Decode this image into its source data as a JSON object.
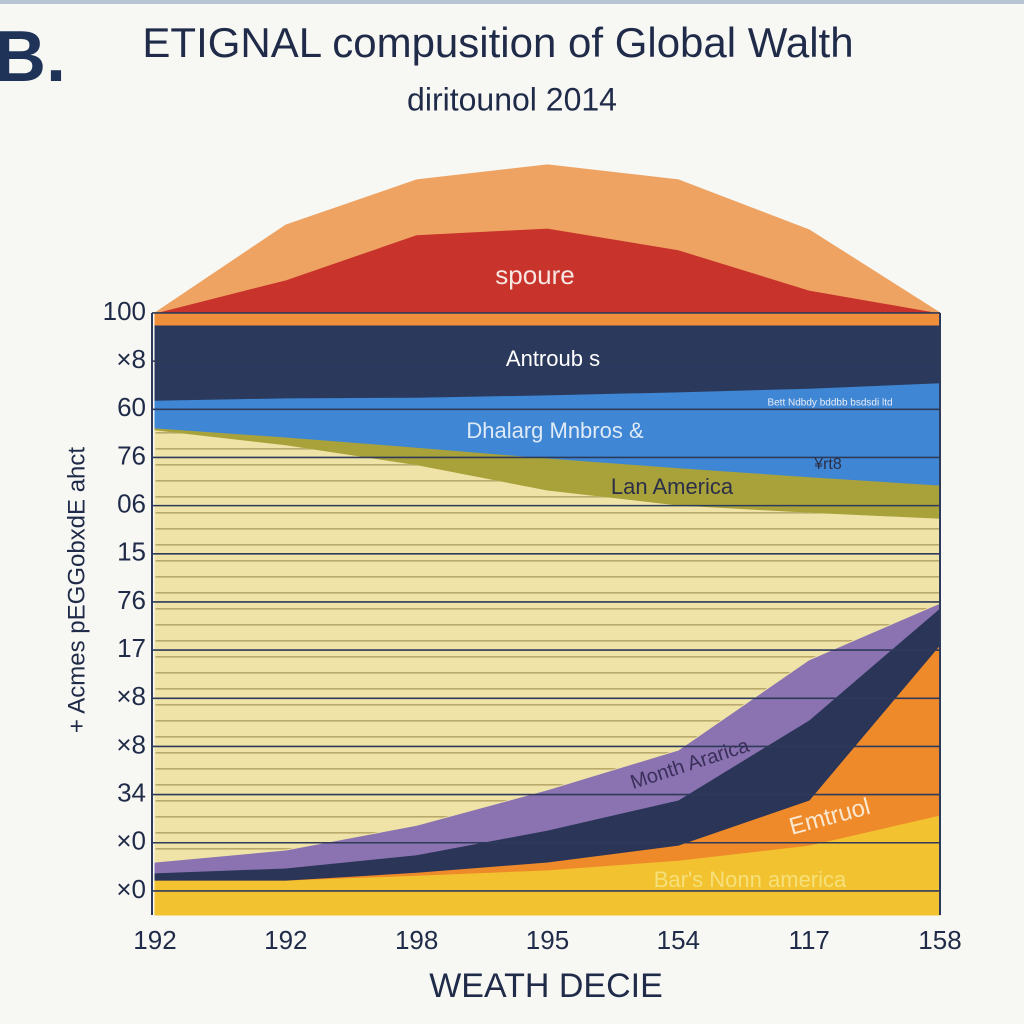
{
  "chart_data": {
    "type": "stacked_area",
    "corner_mark": "B.",
    "title": "ETIGNAL compusition of Global Walth",
    "subtitle": "diritounol 2014",
    "ylabel": "+ Acmes pEGGobxdE ahct",
    "xlabel": "WEATH DECIE",
    "categories": [
      "192",
      "192",
      "198",
      "195",
      "154",
      "117",
      "158"
    ],
    "ylim": [
      0,
      128
    ],
    "yticks": [
      100,
      {
        "value": 92,
        "label": "×8"
      },
      {
        "value": 84,
        "label": "60"
      },
      76,
      {
        "value": 68,
        "label": "06"
      },
      {
        "value": 60,
        "label": "15"
      },
      {
        "value": 52,
        "label": "76"
      },
      {
        "value": 44,
        "label": "17"
      },
      {
        "value": 36,
        "label": "×8"
      },
      {
        "value": 28,
        "label": "×8"
      },
      {
        "value": 20,
        "label": "34"
      },
      {
        "value": 12,
        "label": "×0"
      },
      {
        "value": 4,
        "label": "×0"
      }
    ],
    "grid": true,
    "series": [
      {
        "name": "Bar's Nonn america",
        "color": "#f2c230",
        "values": [
          5.8,
          5.8,
          6.6,
          7.5,
          9.1,
          11.6,
          16.6
        ]
      },
      {
        "name": "Emtruol",
        "color": "#ef8a2a",
        "values": [
          0,
          0,
          0.5,
          1.3,
          2.5,
          7.5,
          28.3
        ]
      },
      {
        "color": "#2a3558",
        "values": [
          1.2,
          2.0,
          2.9,
          5.3,
          7.5,
          13.3,
          6.1
        ]
      },
      {
        "name": "Month Ararica",
        "color": "#8a73b0",
        "values": [
          1.8,
          3.0,
          4.9,
          6.7,
          8.3,
          10.0,
          0.8
        ]
      },
      {
        "color": "#efe3a8",
        "values": [
          71.8,
          67.3,
          59.9,
          49.8,
          40.7,
          24.5,
          14.1
        ]
      },
      {
        "name": "Lan America",
        "color": "#a9a23a",
        "values": [
          0.3,
          1.3,
          2.9,
          5.3,
          6.2,
          5.9,
          5.5
        ]
      },
      {
        "name": "Dhalarg Mnbros &",
        "color": "#3f86d4",
        "values": [
          4.6,
          6.5,
          8.3,
          10.5,
          12.6,
          14.7,
          17.0
        ]
      },
      {
        "name": "Antroub s",
        "color": "#2b3a5c",
        "values": [
          12.5,
          12.1,
          12.0,
          11.6,
          11.1,
          10.5,
          9.6
        ]
      },
      {
        "color": "#ef8f3c",
        "values": [
          2,
          2,
          2,
          2,
          2,
          2,
          2
        ]
      },
      {
        "name": "spoure",
        "color": "#c8332b",
        "values": [
          0,
          5.5,
          13.0,
          14.1,
          10.5,
          3.8,
          0
        ]
      },
      {
        "color": "#eea362",
        "values": [
          0,
          9.1,
          9.1,
          10.5,
          11.6,
          10.0,
          0
        ]
      }
    ],
    "annotations": [
      "Bett Ndbdy bddbb bsdsdi ltd",
      "¥rt8"
    ]
  }
}
